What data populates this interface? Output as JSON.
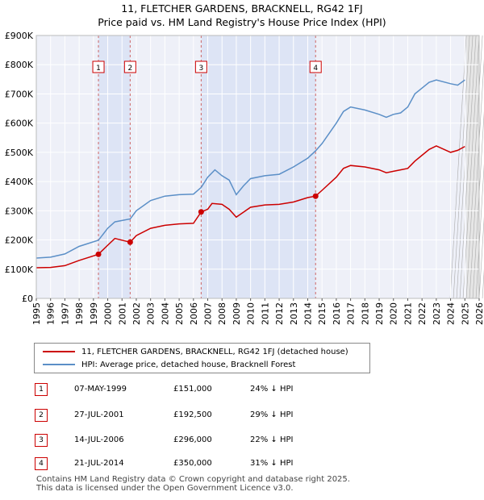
{
  "chart_data": {
    "type": "line",
    "title": "11, FLETCHER GARDENS, BRACKNELL, RG42 1FJ",
    "subtitle": "Price paid vs. HM Land Registry's House Price Index (HPI)",
    "xlim": [
      1995,
      2026
    ],
    "ylim": [
      0,
      900000
    ],
    "x_ticks": [
      "1995",
      "1996",
      "1997",
      "1998",
      "1999",
      "2000",
      "2001",
      "2002",
      "2003",
      "2004",
      "2005",
      "2006",
      "2007",
      "2008",
      "2009",
      "2010",
      "2011",
      "2012",
      "2013",
      "2014",
      "2015",
      "2016",
      "2017",
      "2018",
      "2019",
      "2020",
      "2021",
      "2022",
      "2023",
      "2024",
      "2025",
      "2026"
    ],
    "y_ticks": [
      {
        "value": 0,
        "label": "£0"
      },
      {
        "value": 100000,
        "label": "£100K"
      },
      {
        "value": 200000,
        "label": "£200K"
      },
      {
        "value": 300000,
        "label": "£300K"
      },
      {
        "value": 400000,
        "label": "£400K"
      },
      {
        "value": 500000,
        "label": "£500K"
      },
      {
        "value": 600000,
        "label": "£600K"
      },
      {
        "value": 700000,
        "label": "£700K"
      },
      {
        "value": 800000,
        "label": "£800K"
      },
      {
        "value": 900000,
        "label": "£900K"
      }
    ],
    "grid": true,
    "forecast_from": 2025.1,
    "series": [
      {
        "name": "11, FLETCHER GARDENS, BRACKNELL, RG42 1FJ (detached house)",
        "color": "#cc0000",
        "points": [
          [
            1995.0,
            105000
          ],
          [
            1996.0,
            106000
          ],
          [
            1997.0,
            112000
          ],
          [
            1998.0,
            130000
          ],
          [
            1999.35,
            151000
          ],
          [
            2000.0,
            182000
          ],
          [
            2000.5,
            205000
          ],
          [
            2001.57,
            192500
          ],
          [
            2002.0,
            215000
          ],
          [
            2003.0,
            240000
          ],
          [
            2004.0,
            250000
          ],
          [
            2005.0,
            255000
          ],
          [
            2006.0,
            257000
          ],
          [
            2006.54,
            296000
          ],
          [
            2007.0,
            305000
          ],
          [
            2007.3,
            325000
          ],
          [
            2008.0,
            322000
          ],
          [
            2008.5,
            305000
          ],
          [
            2009.0,
            278000
          ],
          [
            2009.5,
            295000
          ],
          [
            2010.0,
            312000
          ],
          [
            2011.0,
            320000
          ],
          [
            2012.0,
            322000
          ],
          [
            2013.0,
            330000
          ],
          [
            2014.0,
            345000
          ],
          [
            2014.55,
            350000
          ],
          [
            2015.0,
            370000
          ],
          [
            2016.0,
            415000
          ],
          [
            2016.5,
            445000
          ],
          [
            2017.0,
            455000
          ],
          [
            2018.0,
            450000
          ],
          [
            2019.0,
            440000
          ],
          [
            2019.5,
            430000
          ],
          [
            2020.0,
            435000
          ],
          [
            2020.5,
            440000
          ],
          [
            2021.0,
            445000
          ],
          [
            2021.5,
            470000
          ],
          [
            2022.0,
            490000
          ],
          [
            2022.5,
            510000
          ],
          [
            2023.0,
            522000
          ],
          [
            2024.0,
            500000
          ],
          [
            2024.5,
            507000
          ],
          [
            2025.0,
            520000
          ]
        ]
      },
      {
        "name": "HPI: Average price, detached house, Bracknell Forest",
        "color": "#5b8fc7",
        "points": [
          [
            1995.0,
            138000
          ],
          [
            1996.0,
            141000
          ],
          [
            1997.0,
            152000
          ],
          [
            1998.0,
            178000
          ],
          [
            1999.35,
            199000
          ],
          [
            2000.0,
            240000
          ],
          [
            2000.5,
            262000
          ],
          [
            2001.57,
            272000
          ],
          [
            2002.0,
            300000
          ],
          [
            2003.0,
            335000
          ],
          [
            2004.0,
            350000
          ],
          [
            2005.0,
            355000
          ],
          [
            2006.0,
            357000
          ],
          [
            2006.54,
            380000
          ],
          [
            2007.0,
            415000
          ],
          [
            2007.5,
            440000
          ],
          [
            2008.0,
            420000
          ],
          [
            2008.5,
            405000
          ],
          [
            2009.0,
            355000
          ],
          [
            2009.5,
            385000
          ],
          [
            2010.0,
            410000
          ],
          [
            2011.0,
            420000
          ],
          [
            2012.0,
            425000
          ],
          [
            2013.0,
            450000
          ],
          [
            2014.0,
            480000
          ],
          [
            2014.55,
            505000
          ],
          [
            2015.0,
            530000
          ],
          [
            2016.0,
            600000
          ],
          [
            2016.5,
            640000
          ],
          [
            2017.0,
            655000
          ],
          [
            2018.0,
            645000
          ],
          [
            2019.0,
            630000
          ],
          [
            2019.5,
            620000
          ],
          [
            2020.0,
            630000
          ],
          [
            2020.5,
            635000
          ],
          [
            2021.0,
            655000
          ],
          [
            2021.5,
            700000
          ],
          [
            2022.0,
            720000
          ],
          [
            2022.5,
            740000
          ],
          [
            2023.0,
            748000
          ],
          [
            2024.0,
            735000
          ],
          [
            2024.5,
            730000
          ],
          [
            2025.0,
            748000
          ]
        ]
      }
    ],
    "sales": [
      {
        "n": "1",
        "x": 1999.35,
        "y": 151000
      },
      {
        "n": "2",
        "x": 2001.57,
        "y": 192500
      },
      {
        "n": "3",
        "x": 2006.54,
        "y": 296000
      },
      {
        "n": "4",
        "x": 2014.55,
        "y": 350000
      }
    ],
    "shaded_ranges": [
      [
        1999.35,
        2001.57
      ],
      [
        2006.54,
        2014.55
      ]
    ]
  },
  "titles": {
    "line1": "11, FLETCHER GARDENS, BRACKNELL, RG42 1FJ",
    "line2": "Price paid vs. HM Land Registry's House Price Index (HPI)"
  },
  "legend": {
    "property_label": "11, FLETCHER GARDENS, BRACKNELL, RG42 1FJ (detached house)",
    "hpi_label": "HPI: Average price, detached house, Bracknell Forest",
    "property_color": "#cc0000",
    "hpi_color": "#5b8fc7"
  },
  "sales_table": [
    {
      "n": "1",
      "date": "07-MAY-1999",
      "price": "£151,000",
      "hpi": "24% ↓ HPI"
    },
    {
      "n": "2",
      "date": "27-JUL-2001",
      "price": "£192,500",
      "hpi": "29% ↓ HPI"
    },
    {
      "n": "3",
      "date": "14-JUL-2006",
      "price": "£296,000",
      "hpi": "22% ↓ HPI"
    },
    {
      "n": "4",
      "date": "21-JUL-2014",
      "price": "£350,000",
      "hpi": "31% ↓ HPI"
    }
  ],
  "footer": {
    "line1": "Contains HM Land Registry data © Crown copyright and database right 2025.",
    "line2": "This data is licensed under the Open Government Licence v3.0."
  }
}
